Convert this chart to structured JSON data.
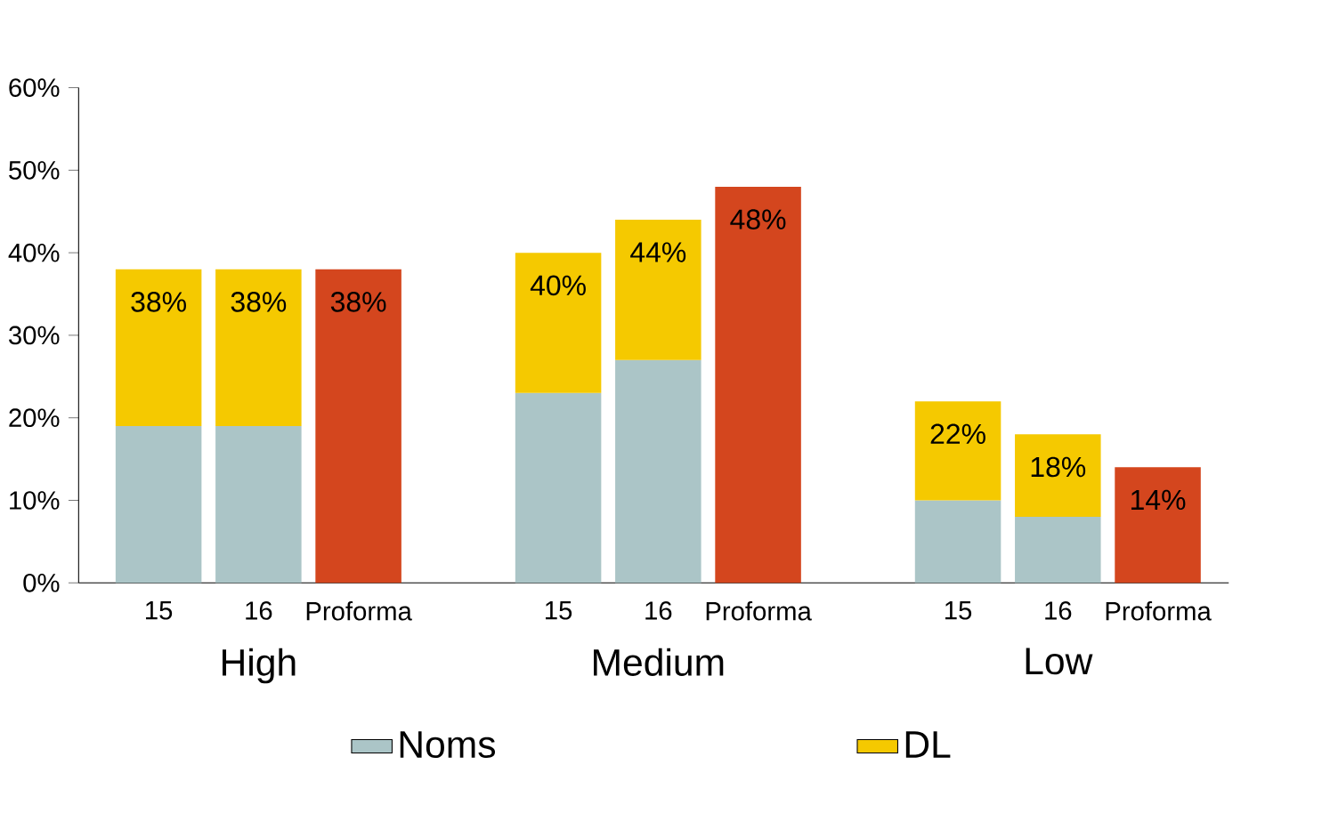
{
  "chart_data": {
    "type": "bar",
    "stacked": true,
    "categories": [
      "15",
      "16",
      "Proforma",
      "15",
      "16",
      "Proforma",
      "15",
      "16",
      "Proforma"
    ],
    "series": [
      {
        "name": "Noms",
        "color": "#abc5c7",
        "values": [
          19,
          19,
          null,
          23,
          27,
          null,
          10,
          8,
          null
        ]
      },
      {
        "name": "DL",
        "color": "#f5c900",
        "values": [
          19,
          19,
          null,
          17,
          17,
          null,
          12,
          10,
          null
        ]
      },
      {
        "color": "#d4461e",
        "values": [
          null,
          null,
          38,
          null,
          null,
          48,
          null,
          null,
          14
        ],
        "value_labels": [
          null,
          null,
          "38%",
          null,
          null,
          "48%",
          null,
          null,
          "14%"
        ]
      }
    ],
    "totals": [
      "38%",
      "38%",
      null,
      "40%",
      "44%",
      null,
      "22%",
      "18%",
      null
    ],
    "annotations": [
      "High",
      "Medium",
      "Low"
    ],
    "ylim": [
      0,
      60
    ],
    "yticks": [
      {
        "value": 0,
        "label": "0%"
      },
      {
        "value": 10,
        "label": "10%"
      },
      {
        "value": 20,
        "label": "20%"
      },
      {
        "value": 30,
        "label": "30%"
      },
      {
        "value": 40,
        "label": "40%"
      },
      {
        "value": 50,
        "label": "50%"
      },
      {
        "value": 60,
        "label": "60%"
      }
    ],
    "grid": false,
    "legend": "bottom"
  }
}
